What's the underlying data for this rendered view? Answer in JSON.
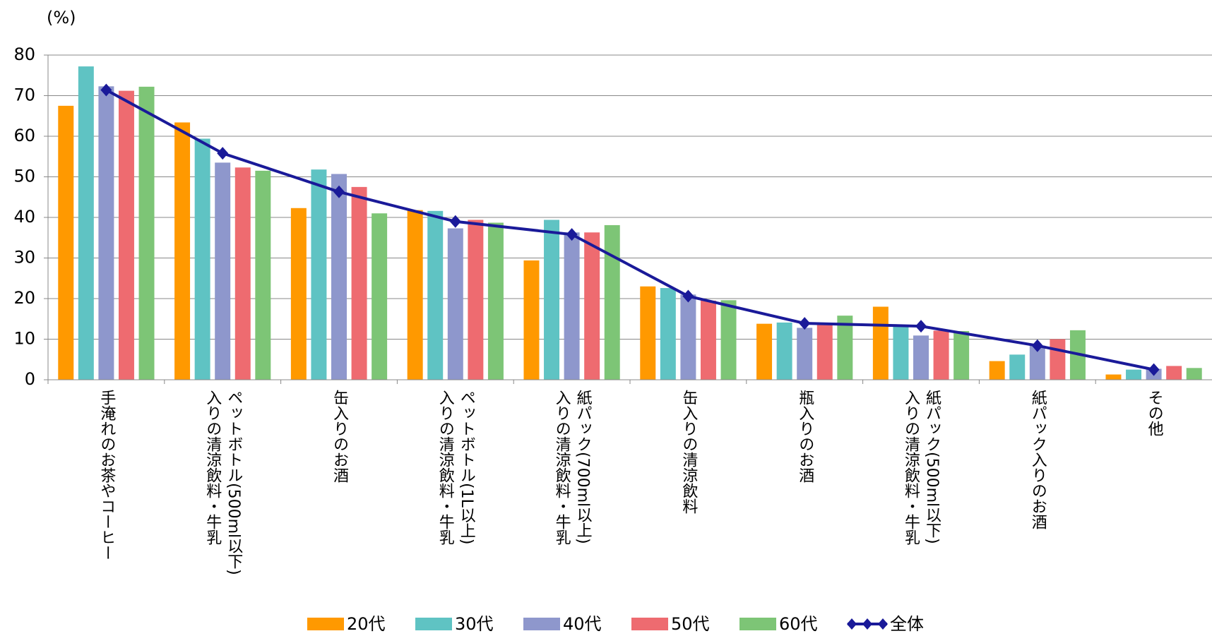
{
  "chart_data": {
    "type": "bar",
    "y_label": "(%)",
    "categories": [
      "手淹れのお茶やコーヒー",
      "ペットボトル(500ml以下)\n入りの清涼飲料・牛乳",
      "缶入りのお酒",
      "ペットボトル(1L以上)\n入りの清涼飲料・牛乳",
      "紙パック(700ml以上)\n入りの清涼飲料・牛乳",
      "缶入りの清涼飲料",
      "瓶入りのお酒",
      "紙パック(500ml以下)\n入りの清涼飲料・牛乳",
      "紙パック入りのお酒",
      "その他"
    ],
    "series": [
      {
        "name": "20代",
        "color": "#ff9900",
        "values": [
          67.5,
          63.4,
          42.3,
          41.8,
          29.4,
          23.0,
          13.8,
          18.0,
          4.6,
          1.3
        ]
      },
      {
        "name": "30代",
        "color": "#5fc3c3",
        "values": [
          77.2,
          59.4,
          51.8,
          41.6,
          39.4,
          22.6,
          14.1,
          13.1,
          6.2,
          2.5
        ]
      },
      {
        "name": "40代",
        "color": "#8e97cc",
        "values": [
          72.3,
          53.5,
          50.7,
          37.3,
          36.3,
          21.0,
          12.8,
          10.9,
          8.4,
          2.7
        ]
      },
      {
        "name": "50代",
        "color": "#ee6b70",
        "values": [
          71.2,
          52.3,
          47.5,
          39.4,
          36.3,
          19.5,
          13.8,
          12.1,
          10.0,
          3.4
        ]
      },
      {
        "name": "60代",
        "color": "#7dc576",
        "values": [
          72.2,
          51.5,
          41.0,
          38.7,
          38.1,
          19.6,
          15.8,
          12.0,
          12.2,
          2.9
        ]
      },
      {
        "name": "全体",
        "color": "#1a1a99",
        "type": "line",
        "values": [
          71.4,
          55.8,
          46.3,
          39.0,
          35.8,
          20.6,
          13.9,
          13.2,
          8.4,
          2.5
        ]
      }
    ],
    "ylim": [
      0,
      80
    ],
    "yticks": [
      0,
      10,
      20,
      30,
      40,
      50,
      60,
      70,
      80
    ],
    "grid": true,
    "legend": "bottom"
  }
}
